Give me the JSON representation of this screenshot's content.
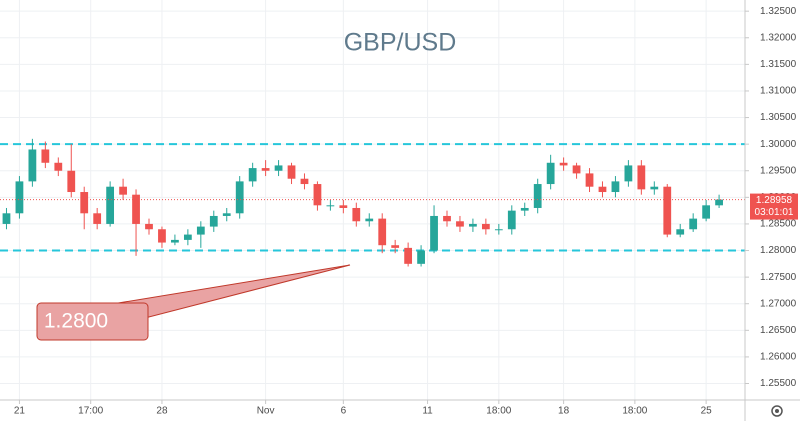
{
  "chart_data": {
    "type": "candlestick",
    "title": "GBP/USD",
    "x": [
      0,
      1,
      2,
      3,
      4,
      5,
      6,
      7,
      8,
      9,
      10,
      11,
      12,
      13,
      14,
      15,
      16,
      17,
      18,
      19,
      20,
      21,
      22,
      23,
      24,
      25,
      26,
      27,
      28,
      29,
      30,
      31,
      32,
      33,
      34,
      35,
      36,
      37,
      38,
      39,
      40,
      41,
      42,
      43,
      44,
      45,
      46,
      47,
      48,
      49,
      50,
      51,
      52,
      53,
      54,
      55
    ],
    "open": [
      1.285,
      1.287,
      1.293,
      1.299,
      1.2965,
      1.295,
      1.291,
      1.287,
      1.285,
      1.292,
      1.2905,
      1.285,
      1.284,
      1.2815,
      1.282,
      1.283,
      1.2845,
      1.2865,
      1.287,
      1.293,
      1.2955,
      1.295,
      1.296,
      1.2935,
      1.2925,
      1.2885,
      1.2885,
      1.288,
      1.2855,
      1.286,
      1.281,
      1.2805,
      1.2775,
      1.28,
      1.2865,
      1.2855,
      1.2845,
      1.285,
      1.284,
      1.284,
      1.2875,
      1.288,
      1.2925,
      1.2965,
      1.296,
      1.2945,
      1.292,
      1.291,
      1.293,
      1.296,
      1.2915,
      1.292,
      1.283,
      1.284,
      1.286,
      1.2885
    ],
    "high": [
      1.288,
      1.294,
      1.301,
      1.3005,
      1.2975,
      1.3,
      1.292,
      1.288,
      1.293,
      1.2935,
      1.2915,
      1.286,
      1.2845,
      1.283,
      1.284,
      1.2855,
      1.2875,
      1.288,
      1.294,
      1.2965,
      1.297,
      1.297,
      1.2965,
      1.2945,
      1.293,
      1.2895,
      1.2895,
      1.289,
      1.287,
      1.287,
      1.282,
      1.2815,
      1.281,
      1.2885,
      1.2875,
      1.2865,
      1.286,
      1.286,
      1.285,
      1.2885,
      1.289,
      1.2935,
      1.298,
      1.2975,
      1.2965,
      1.2955,
      1.293,
      1.294,
      1.297,
      1.297,
      1.293,
      1.2925,
      1.285,
      1.287,
      1.2895,
      1.2905
    ],
    "low": [
      1.284,
      1.286,
      1.292,
      1.2955,
      1.294,
      1.29,
      1.284,
      1.284,
      1.2845,
      1.2895,
      1.279,
      1.283,
      1.2805,
      1.281,
      1.281,
      1.2805,
      1.2835,
      1.2855,
      1.286,
      1.292,
      1.294,
      1.294,
      1.2925,
      1.2915,
      1.2875,
      1.2875,
      1.287,
      1.2845,
      1.2845,
      1.2795,
      1.2795,
      1.277,
      1.277,
      1.2795,
      1.2845,
      1.2835,
      1.2835,
      1.283,
      1.283,
      1.283,
      1.2865,
      1.287,
      1.2915,
      1.295,
      1.2935,
      1.291,
      1.29,
      1.29,
      1.292,
      1.2905,
      1.2905,
      1.2825,
      1.2825,
      1.2835,
      1.2855,
      1.288
    ],
    "close": [
      1.287,
      1.293,
      1.299,
      1.2965,
      1.295,
      1.291,
      1.287,
      1.285,
      1.292,
      1.2905,
      1.285,
      1.284,
      1.2815,
      1.282,
      1.283,
      1.2845,
      1.2865,
      1.287,
      1.293,
      1.2955,
      1.295,
      1.296,
      1.2935,
      1.2925,
      1.2885,
      1.2885,
      1.288,
      1.2855,
      1.286,
      1.281,
      1.2805,
      1.2775,
      1.28,
      1.2865,
      1.2855,
      1.2845,
      1.285,
      1.284,
      1.284,
      1.2875,
      1.288,
      1.2925,
      1.2965,
      1.296,
      1.2945,
      1.292,
      1.291,
      1.293,
      1.296,
      1.2915,
      1.292,
      1.283,
      1.284,
      1.286,
      1.2885,
      1.28958
    ],
    "up_color": "#26a69a",
    "down_color": "#ef5350",
    "xlim": [
      -0.5,
      57
    ],
    "xticks": [
      {
        "value": 1,
        "label": "21"
      },
      {
        "value": 6.5,
        "label": "17:00"
      },
      {
        "value": 12,
        "label": "28"
      },
      {
        "value": 20,
        "label": "Nov"
      },
      {
        "value": 26,
        "label": "6"
      },
      {
        "value": 32.5,
        "label": "11"
      },
      {
        "value": 38,
        "label": "18:00"
      },
      {
        "value": 43,
        "label": "18"
      },
      {
        "value": 48.5,
        "label": "18:00"
      },
      {
        "value": 54,
        "label": "25"
      }
    ],
    "ylim": [
      1.2519,
      1.3271
    ],
    "yticks": [
      {
        "value": 1.255,
        "label": "1.25500"
      },
      {
        "value": 1.26,
        "label": "1.26000"
      },
      {
        "value": 1.265,
        "label": "1.26500"
      },
      {
        "value": 1.27,
        "label": "1.27000"
      },
      {
        "value": 1.275,
        "label": "1.27500"
      },
      {
        "value": 1.28,
        "label": "1.28000"
      },
      {
        "value": 1.285,
        "label": "1.28500"
      },
      {
        "value": 1.29,
        "label": "1.29000"
      },
      {
        "value": 1.295,
        "label": "1.29500"
      },
      {
        "value": 1.3,
        "label": "1.30000"
      },
      {
        "value": 1.305,
        "label": "1.30500"
      },
      {
        "value": 1.31,
        "label": "1.31000"
      },
      {
        "value": 1.315,
        "label": "1.31500"
      },
      {
        "value": 1.32,
        "label": "1.32000"
      },
      {
        "value": 1.325,
        "label": "1.32500"
      }
    ],
    "grid": true,
    "levels": [
      1.3,
      1.28
    ],
    "level_color": "#26c6da",
    "annotation": "1.2800",
    "countdown": "03:01:01"
  }
}
